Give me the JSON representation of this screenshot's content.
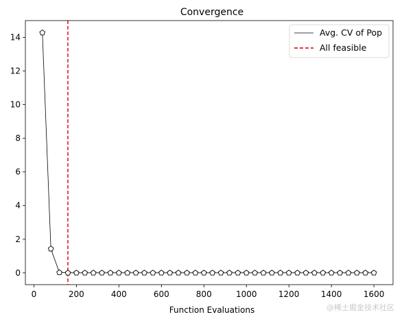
{
  "chart_data": {
    "type": "line",
    "title": "Convergence",
    "xlabel": "Function Evaluations",
    "ylabel": "",
    "xlim": [
      -40,
      1690
    ],
    "ylim": [
      -0.7,
      15.0
    ],
    "xticks": [
      0,
      200,
      400,
      600,
      800,
      1000,
      1200,
      1400,
      1600
    ],
    "yticks": [
      0,
      2,
      4,
      6,
      8,
      10,
      12,
      14
    ],
    "series": [
      {
        "name": "Avg. CV of Pop",
        "color": "#000000",
        "marker": "pentagon",
        "x": [
          40,
          80,
          120,
          160,
          200,
          240,
          280,
          320,
          360,
          400,
          440,
          480,
          520,
          560,
          600,
          640,
          680,
          720,
          760,
          800,
          840,
          880,
          920,
          960,
          1000,
          1040,
          1080,
          1120,
          1160,
          1200,
          1240,
          1280,
          1320,
          1360,
          1400,
          1440,
          1480,
          1520,
          1560,
          1600
        ],
        "y": [
          14.28,
          1.43,
          0.02,
          0,
          0,
          0,
          0,
          0,
          0,
          0,
          0,
          0,
          0,
          0,
          0,
          0,
          0,
          0,
          0,
          0,
          0,
          0,
          0,
          0,
          0,
          0,
          0,
          0,
          0,
          0,
          0,
          0,
          0,
          0,
          0,
          0,
          0,
          0,
          0,
          0
        ]
      }
    ],
    "vline": {
      "name": "All feasible",
      "x": 160,
      "color": "#e41a1c",
      "style": "dashed"
    },
    "legend_position": "top-right",
    "grid": false
  },
  "watermark": "@稀土掘金技术社区"
}
